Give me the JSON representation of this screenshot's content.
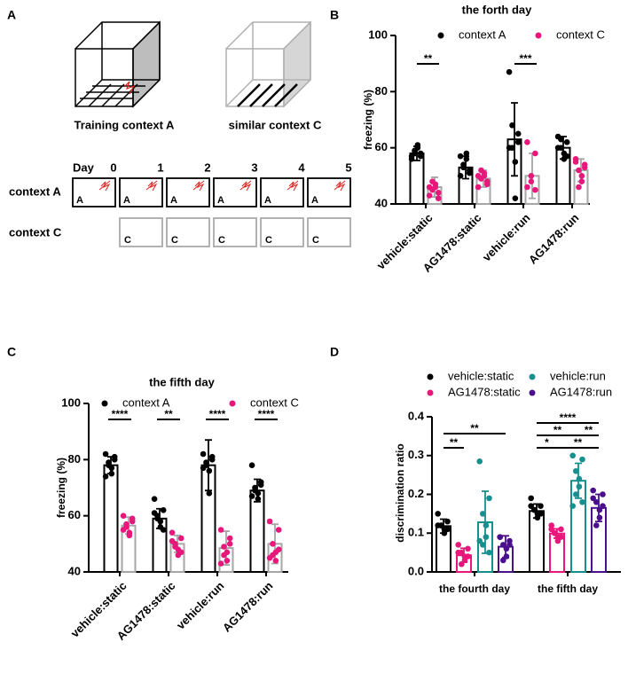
{
  "panel_labels": [
    "A",
    "B",
    "C",
    "D"
  ],
  "diagram": {
    "context_a_title": "Training context A",
    "context_c_title": "similar context C",
    "day_label": "Day",
    "days": [
      "0",
      "1",
      "2",
      "3",
      "4",
      "5"
    ],
    "rows": [
      "context A",
      "context C"
    ],
    "box_letters": [
      "A",
      "C"
    ]
  },
  "chart_data": [
    {
      "type": "bar",
      "title": "the forth day",
      "y_label": "freezing (%)",
      "categories": [
        "vehicle:static",
        "AG1478:static",
        "vehicle:run",
        "AG1478:run"
      ],
      "ylim": [
        40,
        100
      ],
      "yticks": [
        40,
        60,
        80,
        100
      ],
      "series": [
        {
          "name": "context A",
          "color": "#000000",
          "bar_color": "#000000",
          "values": [
            58,
            53,
            63,
            60
          ],
          "errors": [
            2.5,
            4,
            13,
            4
          ],
          "points": [
            [
              57,
              58,
              59,
              60,
              61,
              58,
              57,
              56
            ],
            [
              50,
              52,
              54,
              56,
              58,
              53,
              51,
              57
            ],
            [
              87,
              65,
              60,
              55,
              42,
              68,
              62,
              60
            ],
            [
              64,
              62,
              60,
              58,
              56,
              63,
              57,
              60
            ]
          ]
        },
        {
          "name": "context C",
          "color": "#e8177b",
          "bar_color": "#a6a6a6",
          "values": [
            46,
            49,
            50,
            52
          ],
          "errors": [
            3.5,
            3,
            8,
            4
          ],
          "points": [
            [
              43,
              44,
              45,
              46,
              47,
              48,
              42,
              46
            ],
            [
              46,
              48,
              49,
              50,
              51,
              52,
              47,
              50
            ],
            [
              62,
              58,
              50,
              48,
              45,
              46
            ],
            [
              56,
              54,
              52,
              50,
              48,
              46,
              53,
              55
            ]
          ]
        }
      ],
      "annotations": [
        "**",
        "***"
      ]
    },
    {
      "type": "bar",
      "title": "the fifth day",
      "y_label": "freezing (%)",
      "categories": [
        "vehicle:static",
        "AG1478:static",
        "vehicle:run",
        "AG1478:run"
      ],
      "ylim": [
        40,
        100
      ],
      "yticks": [
        40,
        60,
        80,
        100
      ],
      "series": [
        {
          "name": "context A",
          "color": "#000000",
          "bar_color": "#000000",
          "values": [
            78,
            59,
            78,
            69
          ],
          "errors": [
            3,
            3.5,
            9,
            4
          ],
          "points": [
            [
              82,
              80,
              78,
              77,
              75,
              79,
              81,
              74
            ],
            [
              66,
              62,
              60,
              58,
              56,
              59,
              55,
              61
            ],
            [
              82,
              80,
              78,
              76,
              68,
              79,
              81,
              77
            ],
            [
              78,
              72,
              70,
              68,
              66,
              69,
              71,
              67
            ]
          ]
        },
        {
          "name": "context C",
          "color": "#e8177b",
          "bar_color": "#a6a6a6",
          "values": [
            56.5,
            50,
            48.5,
            50
          ],
          "errors": [
            3,
            3,
            6,
            7
          ],
          "points": [
            [
              60,
              58,
              56,
              54,
              53,
              57,
              59,
              55
            ],
            [
              54,
              52,
              50,
              48,
              46,
              49,
              47,
              51
            ],
            [
              55,
              52,
              49,
              47,
              44,
              46,
              50,
              43
            ],
            [
              58,
              55,
              50,
              47,
              44,
              46,
              48,
              45
            ]
          ]
        }
      ],
      "annotations": [
        "****",
        "**",
        "****",
        "****"
      ]
    },
    {
      "type": "bar",
      "y_label": "discrimination ratio",
      "categories": [
        "the fourth day",
        "the fifth day"
      ],
      "ylim": [
        0,
        0.4
      ],
      "yticks": [
        {
          "value": 0,
          "label": "0.0"
        },
        0.1,
        0.2,
        0.3,
        0.4
      ],
      "series": [
        {
          "name": "vehicle:static",
          "color": "#000000",
          "bar_color": "#000000",
          "values": [
            0.118,
            0.157
          ],
          "errors": [
            0.018,
            0.018
          ],
          "points": [
            [
              0.15,
              0.13,
              0.12,
              0.11,
              0.1,
              0.12,
              0.11,
              0.12
            ],
            [
              0.19,
              0.17,
              0.16,
              0.15,
              0.14,
              0.16,
              0.15,
              0.17
            ]
          ]
        },
        {
          "name": "AG1478:static",
          "color": "#e8177b",
          "bar_color": "#e8177b",
          "values": [
            0.043,
            0.099
          ],
          "errors": [
            0.018,
            0.012
          ],
          "points": [
            [
              0.07,
              0.06,
              0.05,
              0.04,
              0.03,
              0.02,
              0.04,
              0.05
            ],
            [
              0.12,
              0.11,
              0.1,
              0.09,
              0.08,
              0.1,
              0.09,
              0.11
            ]
          ]
        },
        {
          "name": "vehicle:run",
          "color": "#168f8f",
          "bar_color": "#168f8f",
          "values": [
            0.128,
            0.235
          ],
          "errors": [
            0.08,
            0.045
          ],
          "points": [
            [
              0.285,
              0.19,
              0.15,
              0.12,
              0.09,
              0.07,
              0.05,
              0.08
            ],
            [
              0.3,
              0.29,
              0.26,
              0.24,
              0.22,
              0.2,
              0.18,
              0.17
            ]
          ]
        },
        {
          "name": "AG1478:run",
          "color": "#4a0f8c",
          "bar_color": "#4a0f8c",
          "values": [
            0.065,
            0.165
          ],
          "errors": [
            0.028,
            0.035
          ],
          "points": [
            [
              0.09,
              0.08,
              0.07,
              0.06,
              0.04,
              0.03,
              0.07,
              0.09
            ],
            [
              0.21,
              0.2,
              0.18,
              0.16,
              0.14,
              0.12,
              0.17,
              0.19
            ]
          ]
        }
      ],
      "annotations": [
        "**",
        "**",
        "****",
        "**",
        "**",
        "*",
        "**"
      ]
    }
  ]
}
